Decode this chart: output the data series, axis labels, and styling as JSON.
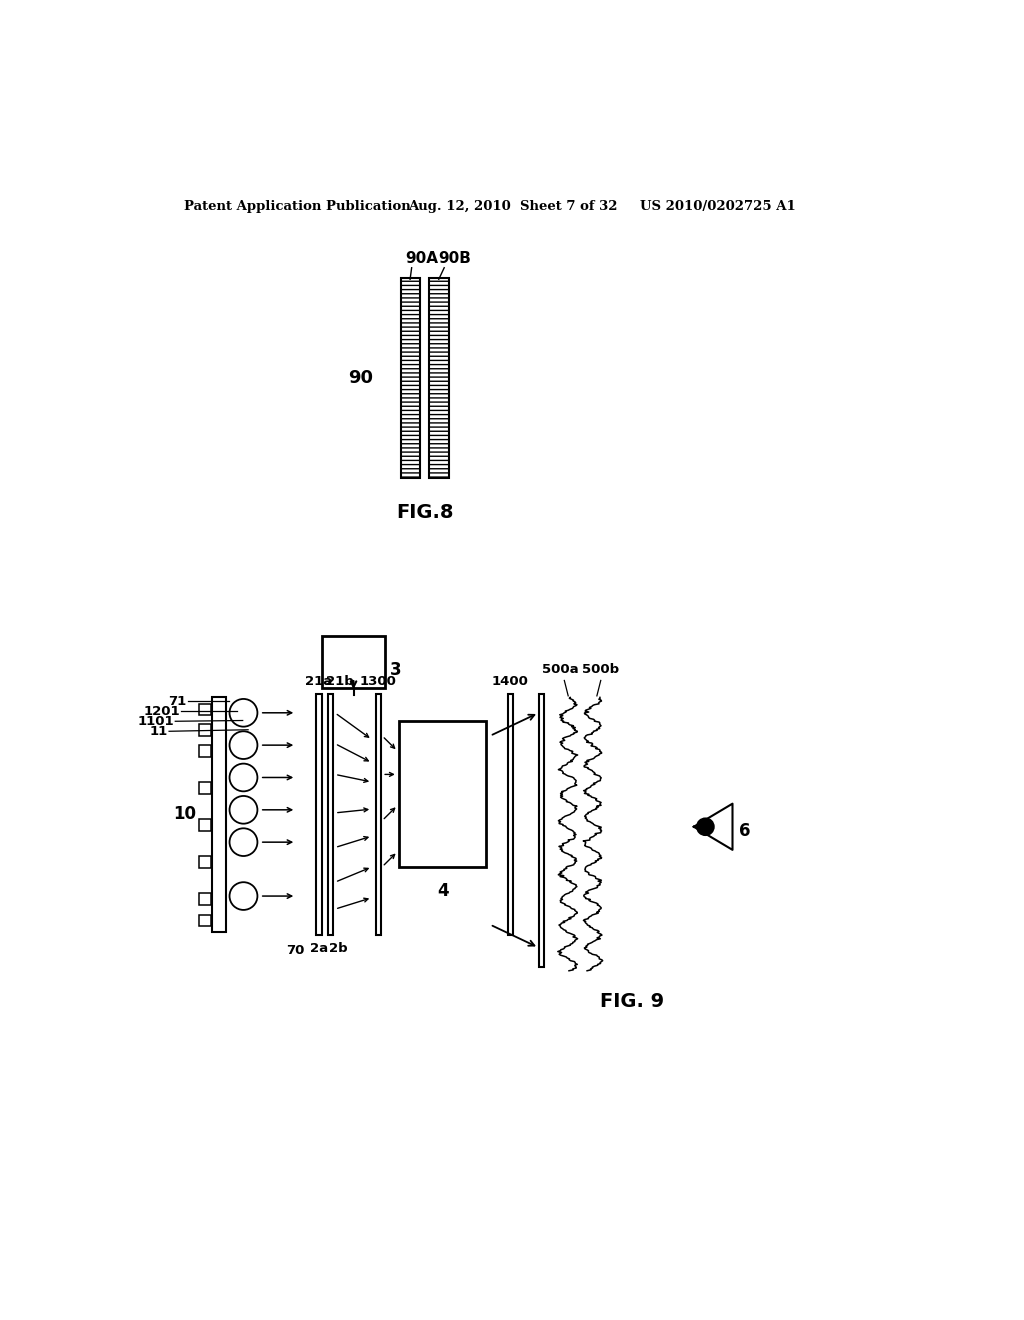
{
  "bg_color": "#ffffff",
  "header_left": "Patent Application Publication",
  "header_mid": "Aug. 12, 2010  Sheet 7 of 32",
  "header_right": "US 2010/0202725 A1",
  "fig8_label": "FIG.8",
  "fig9_label": "FIG. 9",
  "label_90": "90",
  "label_90A": "90A",
  "label_90B": "90B",
  "label_3": "3",
  "label_4": "4",
  "label_6": "6",
  "label_10": "10",
  "label_11": "11",
  "label_70": "70",
  "label_71": "71",
  "label_2a": "2a",
  "label_2b": "2b",
  "label_21a": "21a",
  "label_21b": "21b",
  "label_1201": "1201",
  "label_1101": "1101",
  "label_1300": "1300",
  "label_1400": "1400",
  "label_500a": "500a",
  "label_500b": "500b"
}
